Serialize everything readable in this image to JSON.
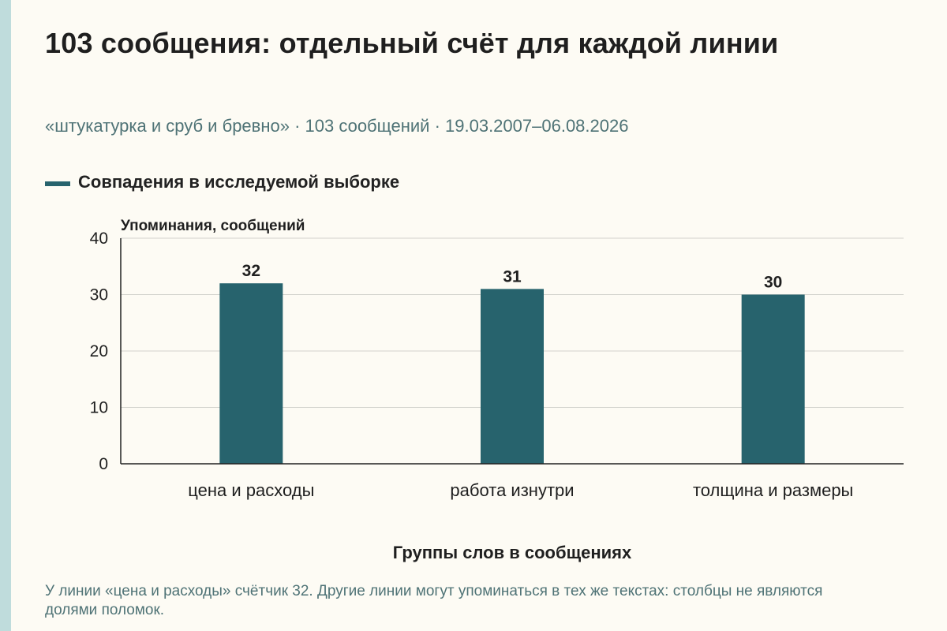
{
  "title": "103 сообщения: отдельный счёт для каждой линии",
  "subtitle": "«штукатурка и сруб и бревно» · 103 сообщений · 19.03.2007–06.08.2026",
  "note": "У линии «цена и расходы» счётчик 32. Другие линии могут упоминаться в тех же текстах: столбцы не являются долями поломок.",
  "colors": {
    "bar": "#27636d",
    "accent_strip": "#bfdcdc",
    "subtitle": "#4f7376"
  },
  "chart_data": {
    "type": "bar",
    "categories": [
      "цена и расходы",
      "работа изнутри",
      "толщина и размеры"
    ],
    "series": [
      {
        "name": "Совпадения в исследуемой выборке",
        "values": [
          32,
          31,
          30
        ]
      }
    ],
    "ylabel": "Упоминания, сообщений",
    "xlabel": "Группы слов в сообщениях",
    "ylim": [
      0,
      40
    ],
    "yticks": [
      0,
      10,
      20,
      30,
      40
    ],
    "grid": true,
    "legend": "top-left"
  }
}
